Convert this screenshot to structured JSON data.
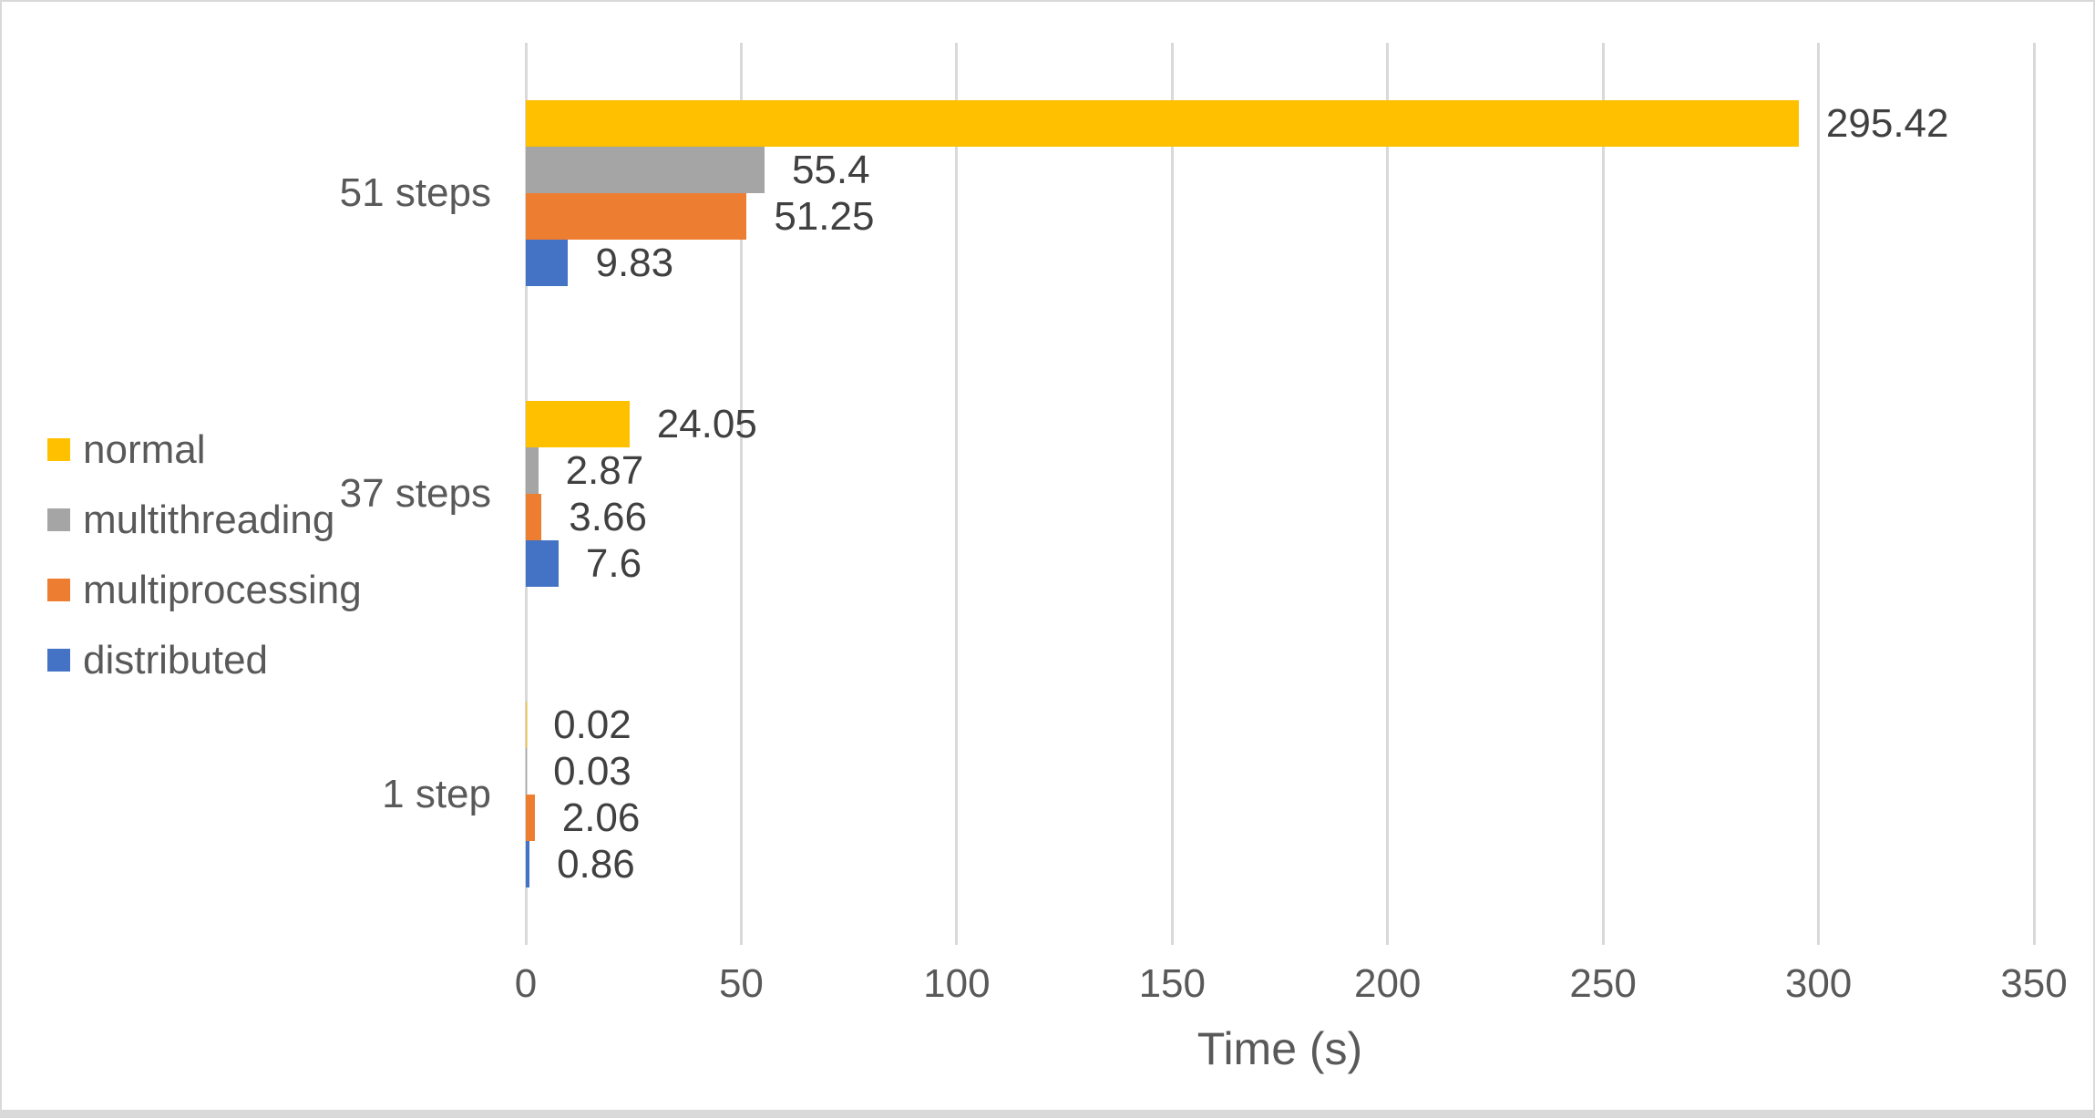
{
  "chart_data": {
    "type": "bar",
    "orientation": "horizontal",
    "title": "",
    "xlabel": "Time (s)",
    "ylabel": "",
    "categories": [
      "51 steps",
      "37 steps",
      "1 step"
    ],
    "series": [
      {
        "name": "normal",
        "color": "#FFC000",
        "values": [
          295.42,
          24.05,
          0.02
        ],
        "labels": [
          "295.42",
          "24.05",
          "0.02"
        ]
      },
      {
        "name": "multithreading",
        "color": "#A5A5A5",
        "values": [
          55.4,
          2.87,
          0.03
        ],
        "labels": [
          "55.4",
          "2.87",
          "0.03"
        ]
      },
      {
        "name": "multiprocessing",
        "color": "#ED7D31",
        "values": [
          51.25,
          3.66,
          2.06
        ],
        "labels": [
          "51.25",
          "3.66",
          "2.06"
        ]
      },
      {
        "name": "distributed",
        "color": "#4472C4",
        "values": [
          9.83,
          7.6,
          0.86
        ],
        "labels": [
          "9.83",
          "7.6",
          "0.86"
        ]
      }
    ],
    "xlim": [
      0,
      350
    ],
    "x_ticks": [
      "0",
      "50",
      "100",
      "150",
      "200",
      "250",
      "300",
      "350"
    ],
    "grid": true,
    "data_labels": true,
    "legend_position": "left"
  },
  "colors": {
    "background": "#FFFFFF",
    "frame_border": "#D9D9D9",
    "gridline": "#D9D9D9",
    "tick_label_text": "#595959",
    "category_label_text": "#595959",
    "data_label_text": "#404040",
    "legend_text": "#595959"
  }
}
